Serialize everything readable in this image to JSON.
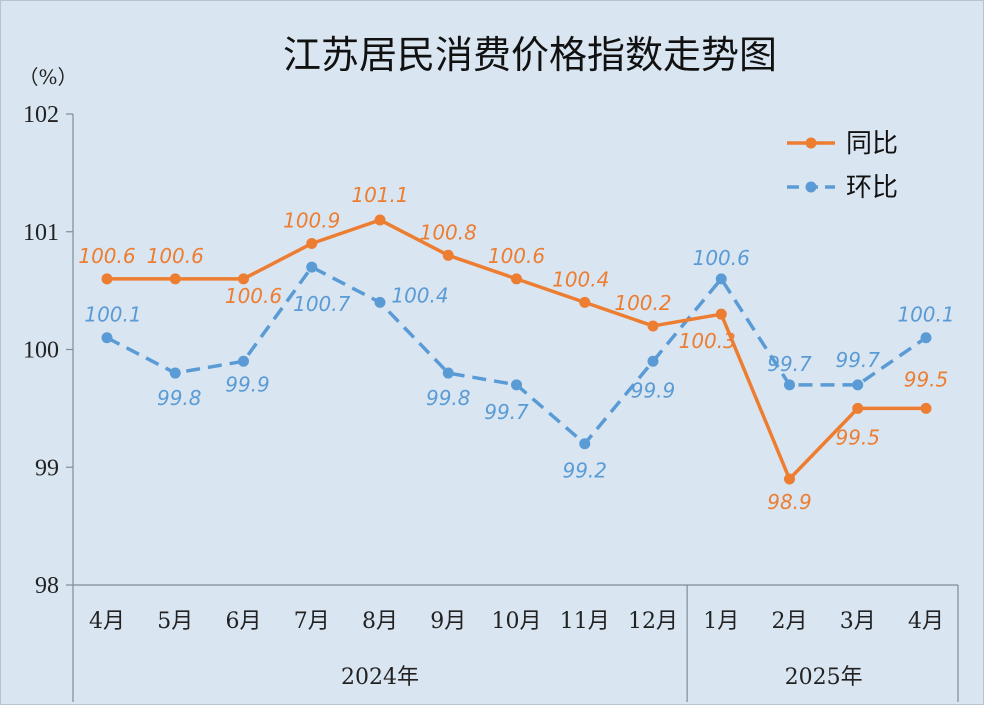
{
  "chart_data": {
    "type": "line",
    "title": "江苏居民消费价格指数走势图",
    "unit": "（%）",
    "categories": [
      "4月",
      "5月",
      "6月",
      "7月",
      "8月",
      "9月",
      "10月",
      "11月",
      "12月",
      "1月",
      "2月",
      "3月",
      "4月"
    ],
    "groups": [
      {
        "label": "2024年",
        "start": 0,
        "end": 8
      },
      {
        "label": "2025年",
        "start": 9,
        "end": 12
      }
    ],
    "ylim": [
      98,
      102
    ],
    "yticks": [
      "98",
      "99",
      "100",
      "101",
      "102"
    ],
    "series": [
      {
        "name": "同比",
        "color": "#ed7d31",
        "style": "solid",
        "values": [
          100.6,
          100.6,
          100.6,
          100.9,
          101.1,
          100.8,
          100.6,
          100.4,
          100.2,
          100.3,
          98.9,
          99.5,
          99.5
        ],
        "labels": [
          "100.6",
          "100.6",
          "100.6",
          "100.9",
          "101.1",
          "100.8",
          "100.6",
          "100.4",
          "100.2",
          "100.3",
          "98.9",
          "99.5",
          "99.5"
        ]
      },
      {
        "name": "环比",
        "color": "#5b9bd5",
        "style": "dashed",
        "values": [
          100.1,
          99.8,
          99.9,
          100.7,
          100.4,
          99.8,
          99.7,
          99.2,
          99.9,
          100.6,
          99.7,
          99.7,
          100.1
        ],
        "labels": [
          "100.1",
          "99.8",
          "99.9",
          "100.7",
          "100.4",
          "99.8",
          "99.7",
          "99.2",
          "99.9",
          "100.6",
          "99.7",
          "99.7",
          "100.1"
        ]
      }
    ],
    "legend_position": "top-right",
    "grid": false
  }
}
